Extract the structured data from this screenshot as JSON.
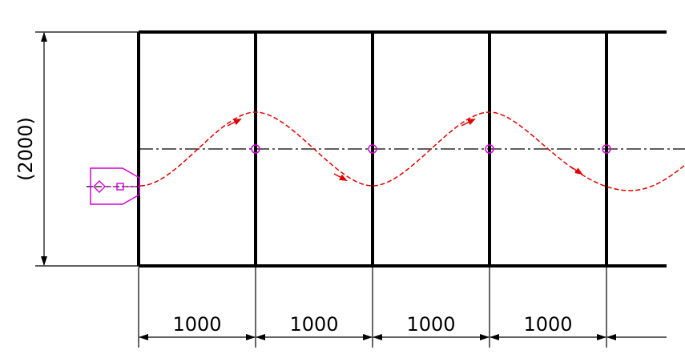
{
  "drawing": {
    "height_dimension_label": "(2000)",
    "column_width_labels": [
      "1000",
      "1000",
      "1000",
      "1000"
    ],
    "colors": {
      "lines": "#000000",
      "path": "#e00000",
      "marker": "#d400d4"
    },
    "path_style": "dashed sine wave with arrows",
    "centerline_style": "dash-dot"
  }
}
